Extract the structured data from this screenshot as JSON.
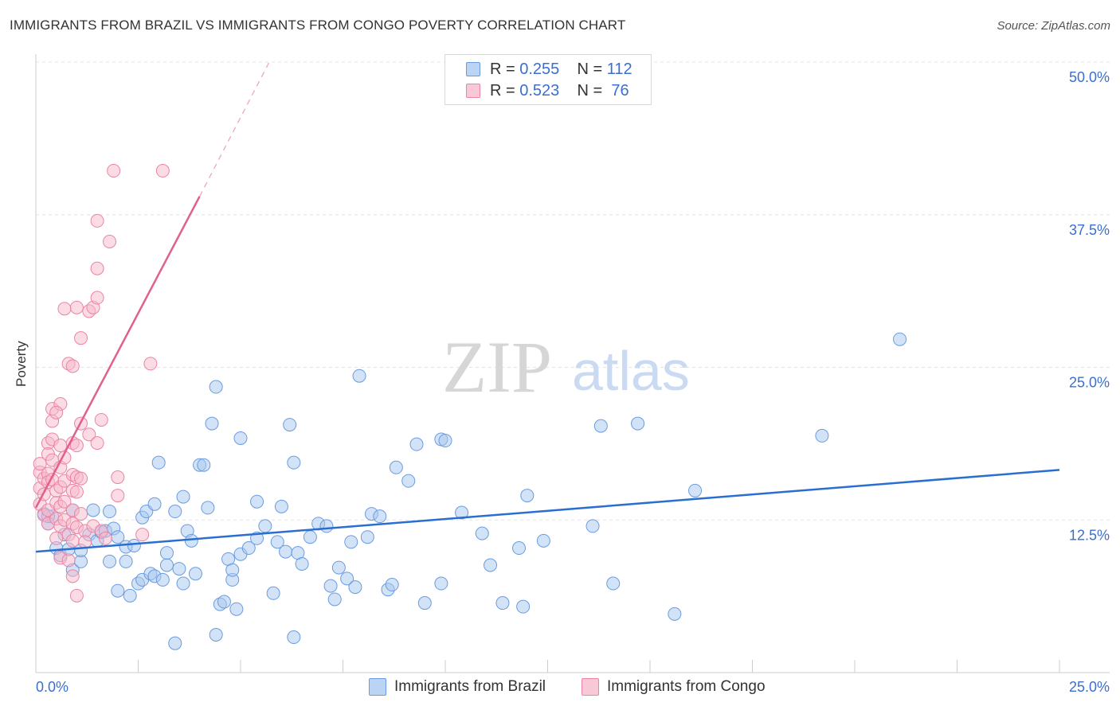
{
  "title": "IMMIGRANTS FROM BRAZIL VS IMMIGRANTS FROM CONGO POVERTY CORRELATION CHART",
  "source": "Source: ZipAtlas.com",
  "watermark": {
    "zip": "ZIP",
    "atlas": "atlas"
  },
  "legend": {
    "r_label": "R = ",
    "n_label": "N = ",
    "brazil": {
      "r": "0.255",
      "n": "112"
    },
    "congo": {
      "r": "0.523",
      "n": " 76"
    }
  },
  "colors": {
    "brazil_fill": "#a8c8f0",
    "brazil_stroke": "#6a9be0",
    "brazil_line": "#2a6fd0",
    "congo_fill": "#f7b8ca",
    "congo_stroke": "#ec84a4",
    "congo_line": "#e06090",
    "axis_text": "#3a6fd0",
    "grid": "#e4e4e4"
  },
  "chart_data": {
    "type": "scatter",
    "title": "IMMIGRANTS FROM BRAZIL VS IMMIGRANTS FROM CONGO POVERTY CORRELATION CHART",
    "xlabel": "",
    "ylabel": "Poverty",
    "xlim": [
      0,
      25
    ],
    "ylim": [
      0,
      50
    ],
    "x_tick_labels": [
      "0.0%",
      "25.0%"
    ],
    "y_ticks": [
      12.5,
      25.0,
      37.5,
      50.0
    ],
    "y_tick_labels": [
      "12.5%",
      "25.0%",
      "37.5%",
      "50.0%"
    ],
    "grid": true,
    "legend_position": "top-center",
    "series": [
      {
        "name": "Immigrants from Brazil",
        "r": 0.255,
        "n": 112,
        "trend": {
          "x": [
            0,
            25
          ],
          "y": [
            9.9,
            16.6
          ],
          "style": "solid"
        },
        "points": [
          [
            0.2,
            13.0
          ],
          [
            0.3,
            12.2
          ],
          [
            0.4,
            12.8
          ],
          [
            0.5,
            10.2
          ],
          [
            0.6,
            9.6
          ],
          [
            0.7,
            11.3
          ],
          [
            0.8,
            10.1
          ],
          [
            0.9,
            13.3
          ],
          [
            0.9,
            8.4
          ],
          [
            1.1,
            9.1
          ],
          [
            1.1,
            10.0
          ],
          [
            1.3,
            11.3
          ],
          [
            1.4,
            13.3
          ],
          [
            1.5,
            10.8
          ],
          [
            1.6,
            11.5
          ],
          [
            1.7,
            11.6
          ],
          [
            1.8,
            9.1
          ],
          [
            1.8,
            13.2
          ],
          [
            1.9,
            11.8
          ],
          [
            2.0,
            11.1
          ],
          [
            2.0,
            6.7
          ],
          [
            2.2,
            9.1
          ],
          [
            2.2,
            10.3
          ],
          [
            2.3,
            6.3
          ],
          [
            2.4,
            10.4
          ],
          [
            2.5,
            7.3
          ],
          [
            2.6,
            12.7
          ],
          [
            2.6,
            7.6
          ],
          [
            2.7,
            13.2
          ],
          [
            2.8,
            8.1
          ],
          [
            2.9,
            7.9
          ],
          [
            2.9,
            13.8
          ],
          [
            3.0,
            17.2
          ],
          [
            3.1,
            7.6
          ],
          [
            3.2,
            8.8
          ],
          [
            3.2,
            9.8
          ],
          [
            3.4,
            13.2
          ],
          [
            3.4,
            2.4
          ],
          [
            3.5,
            8.5
          ],
          [
            3.6,
            7.3
          ],
          [
            3.6,
            14.4
          ],
          [
            3.7,
            11.6
          ],
          [
            3.8,
            10.8
          ],
          [
            3.9,
            8.1
          ],
          [
            4.0,
            17.0
          ],
          [
            4.1,
            17.0
          ],
          [
            4.2,
            13.5
          ],
          [
            4.3,
            20.4
          ],
          [
            4.4,
            23.4
          ],
          [
            4.4,
            3.1
          ],
          [
            4.5,
            5.6
          ],
          [
            4.6,
            5.8
          ],
          [
            4.7,
            9.3
          ],
          [
            4.8,
            7.6
          ],
          [
            4.8,
            8.4
          ],
          [
            4.9,
            5.2
          ],
          [
            5.0,
            19.2
          ],
          [
            5.0,
            9.7
          ],
          [
            5.2,
            10.2
          ],
          [
            5.4,
            11.0
          ],
          [
            5.4,
            14.0
          ],
          [
            5.6,
            12.0
          ],
          [
            5.8,
            6.5
          ],
          [
            5.9,
            10.7
          ],
          [
            6.0,
            13.6
          ],
          [
            6.1,
            9.9
          ],
          [
            6.2,
            20.3
          ],
          [
            6.3,
            17.2
          ],
          [
            6.3,
            2.9
          ],
          [
            6.4,
            9.8
          ],
          [
            6.5,
            8.9
          ],
          [
            6.7,
            11.1
          ],
          [
            6.9,
            12.2
          ],
          [
            7.1,
            12.0
          ],
          [
            7.2,
            7.1
          ],
          [
            7.3,
            6.0
          ],
          [
            7.4,
            8.6
          ],
          [
            7.6,
            7.7
          ],
          [
            7.7,
            10.7
          ],
          [
            7.8,
            7.0
          ],
          [
            7.9,
            24.3
          ],
          [
            8.1,
            11.1
          ],
          [
            8.2,
            13.0
          ],
          [
            8.4,
            12.8
          ],
          [
            8.6,
            6.8
          ],
          [
            8.7,
            7.2
          ],
          [
            8.8,
            16.8
          ],
          [
            9.1,
            15.7
          ],
          [
            9.3,
            18.7
          ],
          [
            9.5,
            5.7
          ],
          [
            9.9,
            7.3
          ],
          [
            9.9,
            19.1
          ],
          [
            10.0,
            19.0
          ],
          [
            10.4,
            13.1
          ],
          [
            10.9,
            11.4
          ],
          [
            11.1,
            8.8
          ],
          [
            11.4,
            5.7
          ],
          [
            11.8,
            10.2
          ],
          [
            11.9,
            5.4
          ],
          [
            12.0,
            14.5
          ],
          [
            12.4,
            10.8
          ],
          [
            13.6,
            12.0
          ],
          [
            13.8,
            20.2
          ],
          [
            14.1,
            7.3
          ],
          [
            14.7,
            20.4
          ],
          [
            15.6,
            4.8
          ],
          [
            16.1,
            14.9
          ],
          [
            19.2,
            19.4
          ],
          [
            21.1,
            27.3
          ],
          [
            0.3,
            12.8
          ]
        ]
      },
      {
        "name": "Immigrants from Congo",
        "r": 0.523,
        "n": 76,
        "trend": {
          "x": [
            0,
            4.0
          ],
          "y": [
            13.5,
            39.0
          ],
          "style": "solid",
          "extension_x": [
            4.0,
            5.7
          ],
          "extension_y": [
            39.0,
            50.0
          ],
          "extension_style": "dashed"
        },
        "points": [
          [
            0.1,
            13.8
          ],
          [
            0.1,
            15.1
          ],
          [
            0.1,
            16.4
          ],
          [
            0.1,
            17.1
          ],
          [
            0.2,
            15.9
          ],
          [
            0.2,
            14.6
          ],
          [
            0.2,
            12.9
          ],
          [
            0.3,
            16.3
          ],
          [
            0.3,
            18.8
          ],
          [
            0.3,
            17.9
          ],
          [
            0.3,
            15.6
          ],
          [
            0.3,
            13.3
          ],
          [
            0.3,
            12.2
          ],
          [
            0.4,
            20.6
          ],
          [
            0.4,
            21.6
          ],
          [
            0.4,
            19.1
          ],
          [
            0.4,
            17.4
          ],
          [
            0.4,
            15.8
          ],
          [
            0.5,
            14.9
          ],
          [
            0.5,
            13.9
          ],
          [
            0.5,
            12.6
          ],
          [
            0.5,
            11.0
          ],
          [
            0.6,
            22.0
          ],
          [
            0.6,
            18.6
          ],
          [
            0.6,
            16.8
          ],
          [
            0.6,
            15.2
          ],
          [
            0.6,
            13.6
          ],
          [
            0.6,
            12.0
          ],
          [
            0.6,
            9.4
          ],
          [
            0.7,
            29.8
          ],
          [
            0.7,
            17.6
          ],
          [
            0.7,
            15.7
          ],
          [
            0.7,
            14.0
          ],
          [
            0.7,
            12.5
          ],
          [
            0.8,
            11.3
          ],
          [
            0.8,
            9.2
          ],
          [
            0.8,
            25.3
          ],
          [
            0.9,
            25.1
          ],
          [
            0.9,
            18.8
          ],
          [
            0.9,
            16.2
          ],
          [
            0.9,
            14.9
          ],
          [
            0.9,
            13.3
          ],
          [
            0.9,
            12.2
          ],
          [
            0.9,
            10.8
          ],
          [
            0.9,
            7.9
          ],
          [
            1.0,
            11.9
          ],
          [
            1.0,
            6.3
          ],
          [
            1.0,
            29.9
          ],
          [
            1.0,
            18.6
          ],
          [
            1.0,
            16.0
          ],
          [
            1.0,
            14.8
          ],
          [
            1.1,
            27.4
          ],
          [
            1.1,
            20.4
          ],
          [
            1.1,
            15.9
          ],
          [
            1.1,
            13.0
          ],
          [
            1.2,
            11.6
          ],
          [
            1.2,
            10.7
          ],
          [
            1.3,
            19.5
          ],
          [
            1.3,
            29.6
          ],
          [
            1.4,
            29.9
          ],
          [
            1.4,
            12.0
          ],
          [
            1.5,
            18.8
          ],
          [
            1.5,
            30.7
          ],
          [
            1.5,
            33.1
          ],
          [
            1.5,
            37.0
          ],
          [
            1.6,
            11.6
          ],
          [
            1.6,
            20.7
          ],
          [
            1.7,
            11.0
          ],
          [
            1.8,
            35.3
          ],
          [
            1.9,
            41.1
          ],
          [
            2.0,
            16.0
          ],
          [
            2.0,
            14.5
          ],
          [
            2.6,
            11.3
          ],
          [
            2.8,
            25.3
          ],
          [
            3.1,
            41.1
          ],
          [
            0.5,
            21.3
          ]
        ]
      }
    ]
  },
  "bottom_legend": [
    "Immigrants from Brazil",
    "Immigrants from Congo"
  ]
}
